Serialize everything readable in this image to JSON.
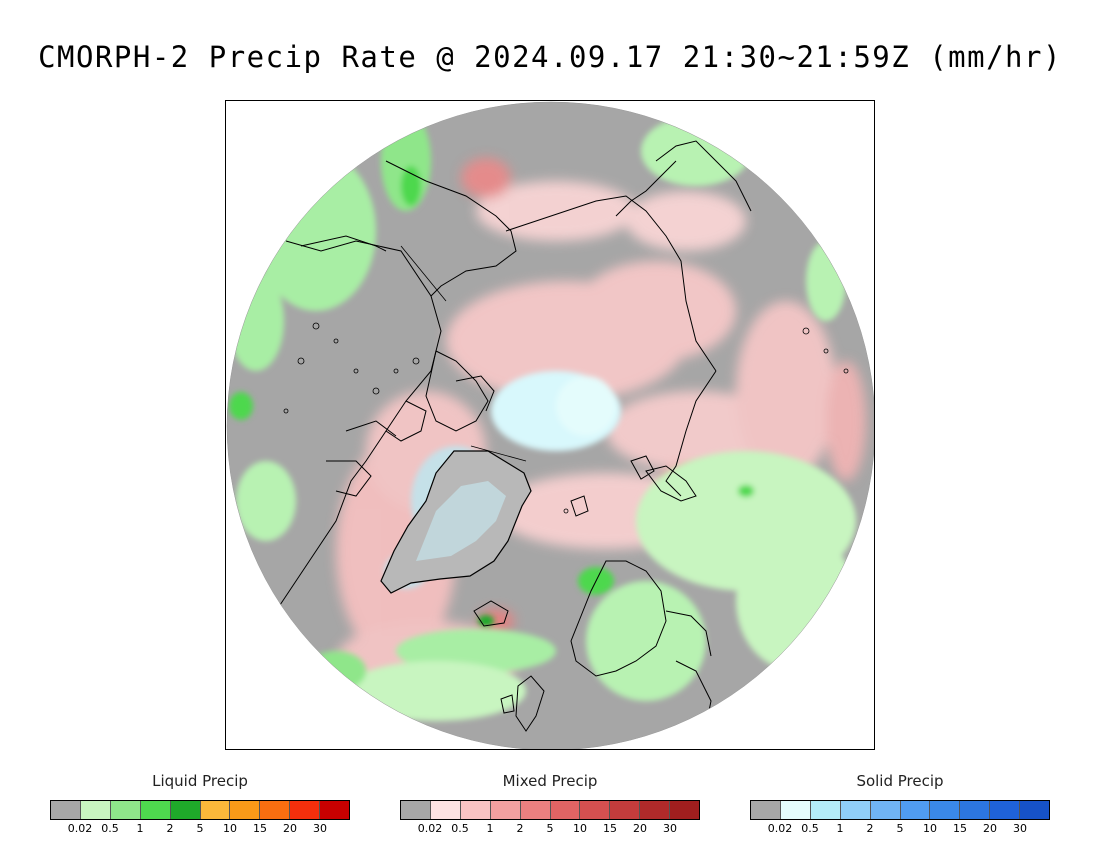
{
  "title": "CMORPH-2 Precip Rate @ 2024.09.17 21:30~21:59Z (mm/hr)",
  "map": {
    "projection": "north-polar-stereographic",
    "colors": {
      "ocean_land_no_precip": "#a6a6a6",
      "frame": "#000000",
      "coastline": "#000000"
    }
  },
  "legends": [
    {
      "id": "liquid",
      "title": "Liquid Precip",
      "colors": [
        "#a6a6a6",
        "#c8f5c0",
        "#8fe68a",
        "#4ed84e",
        "#1faa2a",
        "#fbb83a",
        "#fa9a18",
        "#f96e10",
        "#f42f0c",
        "#c80000"
      ],
      "ticks": [
        "0.02",
        "0.5",
        "1",
        "2",
        "5",
        "10",
        "15",
        "20",
        "30"
      ]
    },
    {
      "id": "mixed",
      "title": "Mixed Precip",
      "colors": [
        "#a6a6a6",
        "#fde3e3",
        "#f9c4c4",
        "#f2a0a0",
        "#ea8080",
        "#e06464",
        "#d45050",
        "#c43c3c",
        "#b02a2a",
        "#a01e1e"
      ],
      "ticks": [
        "0.02",
        "0.5",
        "1",
        "2",
        "5",
        "10",
        "15",
        "20",
        "30"
      ]
    },
    {
      "id": "solid",
      "title": "Solid Precip",
      "colors": [
        "#a6a6a6",
        "#e4fcfc",
        "#b4ecf8",
        "#90cef8",
        "#70b4f4",
        "#509cf0",
        "#3a88e8",
        "#2c76e0",
        "#1f62d8",
        "#1652c8"
      ],
      "ticks": [
        "0.02",
        "0.5",
        "1",
        "2",
        "5",
        "10",
        "15",
        "20",
        "30"
      ]
    }
  ]
}
